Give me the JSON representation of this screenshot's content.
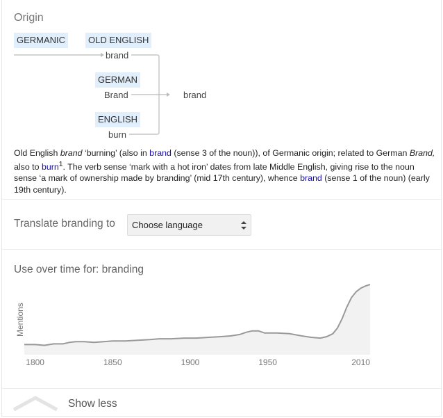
{
  "origin": {
    "title": "Origin",
    "tags": {
      "germanic": "GERMANIC",
      "old_english": "OLD ENGLISH",
      "german": "GERMAN",
      "english": "ENGLISH"
    },
    "words": {
      "old_english_word": "brand",
      "german_word": "Brand",
      "english_word": "burn",
      "result_word": "brand"
    },
    "paragraph": {
      "p1": "Old English ",
      "p1_em": "brand",
      "p2": " ‘burning’ (also in ",
      "link1": "brand",
      "p3": " (sense 3 of the noun)), of Germanic origin; related to German ",
      "p3_em": "Brand,",
      "p4": " also to ",
      "link2": "burn",
      "sup": "1",
      "p5": ". The verb sense ‘mark with a hot iron’ dates from late Middle English, giving rise to the noun sense ‘a mark of ownership made by branding’ (mid 17th century), whence ",
      "link3": "brand",
      "p6": " (sense 1 of the noun) (early 19th century)."
    }
  },
  "translate": {
    "label": "Translate branding to",
    "select_value": "Choose language"
  },
  "usage": {
    "title": "Use over time for: branding",
    "show_less": "Show less"
  },
  "colors": {
    "tag_bg": "#e1eefb",
    "link": "#1a0dab",
    "line": "#999999"
  },
  "chart_data": {
    "type": "area",
    "ylabel": "Mentions",
    "xlabel": "",
    "x_ticks": [
      "1800",
      "1850",
      "1900",
      "1950",
      "2010"
    ],
    "xlim": [
      1793,
      2016
    ],
    "ylim": [
      0,
      100
    ],
    "points": [
      [
        1793,
        14
      ],
      [
        1800,
        14
      ],
      [
        1806,
        13
      ],
      [
        1812,
        15
      ],
      [
        1818,
        15
      ],
      [
        1822,
        17
      ],
      [
        1826,
        18
      ],
      [
        1832,
        18
      ],
      [
        1838,
        17
      ],
      [
        1844,
        18
      ],
      [
        1850,
        19
      ],
      [
        1858,
        19
      ],
      [
        1866,
        20
      ],
      [
        1874,
        21
      ],
      [
        1880,
        22
      ],
      [
        1888,
        22
      ],
      [
        1896,
        23
      ],
      [
        1904,
        23
      ],
      [
        1912,
        24
      ],
      [
        1920,
        25
      ],
      [
        1926,
        26
      ],
      [
        1932,
        28
      ],
      [
        1936,
        31
      ],
      [
        1940,
        33
      ],
      [
        1944,
        33
      ],
      [
        1948,
        30
      ],
      [
        1956,
        30
      ],
      [
        1964,
        29
      ],
      [
        1972,
        26
      ],
      [
        1978,
        24
      ],
      [
        1984,
        23
      ],
      [
        1988,
        25
      ],
      [
        1992,
        29
      ],
      [
        1995,
        37
      ],
      [
        1998,
        50
      ],
      [
        2001,
        66
      ],
      [
        2004,
        79
      ],
      [
        2007,
        87
      ],
      [
        2010,
        92
      ],
      [
        2013,
        95
      ],
      [
        2016,
        97
      ]
    ]
  }
}
